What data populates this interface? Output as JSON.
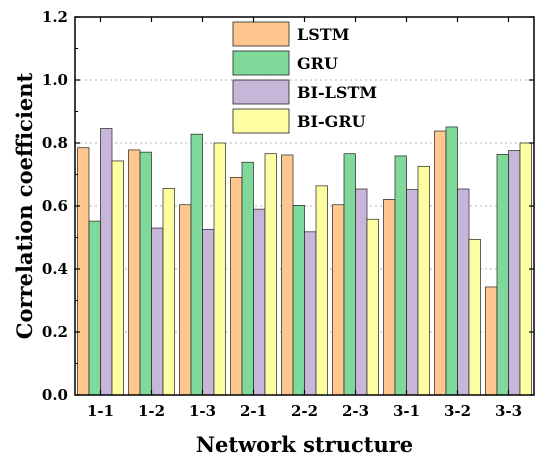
{
  "chart_data": {
    "type": "bar",
    "xlabel": "Network structure",
    "ylabel": "Correlation coefficient",
    "ylim": [
      0,
      1.2
    ],
    "yticks": [
      "0.0",
      "0.2",
      "0.4",
      "0.6",
      "0.8",
      "1.0",
      "1.2"
    ],
    "grid": "horizontal dashed",
    "legend_position": "top-center",
    "categories": [
      "1-1",
      "1-2",
      "1-3",
      "2-1",
      "2-2",
      "2-3",
      "3-1",
      "3-2",
      "3-3"
    ],
    "series": [
      {
        "name": "LSTM",
        "color": "#FFC78E",
        "values": [
          0.785,
          0.778,
          0.604,
          0.691,
          0.762,
          0.604,
          0.621,
          0.838,
          0.343
        ]
      },
      {
        "name": "GRU",
        "color": "#7FD99A",
        "values": [
          0.552,
          0.771,
          0.828,
          0.739,
          0.602,
          0.766,
          0.759,
          0.851,
          0.764
        ]
      },
      {
        "name": "BI-LSTM",
        "color": "#C7B6DA",
        "values": [
          0.846,
          0.53,
          0.526,
          0.59,
          0.518,
          0.654,
          0.652,
          0.654,
          0.776
        ]
      },
      {
        "name": "BI-GRU",
        "color": "#FDFDA2",
        "values": [
          0.743,
          0.656,
          0.8,
          0.766,
          0.664,
          0.558,
          0.726,
          0.494,
          0.8
        ]
      }
    ]
  }
}
